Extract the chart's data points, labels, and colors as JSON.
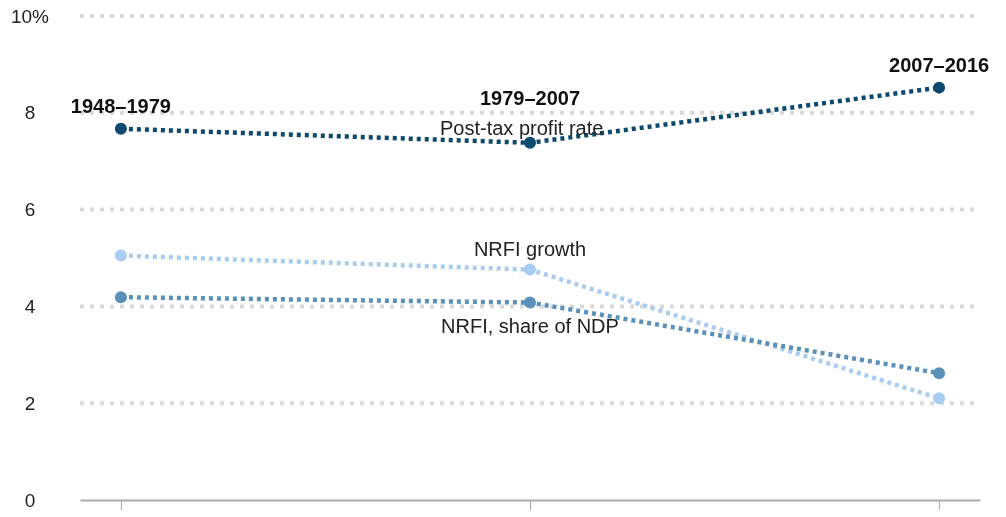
{
  "chart_data": {
    "type": "line",
    "categories": [
      "1948–1979",
      "1979–2007",
      "2007–2016"
    ],
    "series": [
      {
        "name": "Post-tax profit rate",
        "color": "#0b4a6e",
        "values": [
          7.67,
          7.38,
          8.52
        ]
      },
      {
        "name": "NRFI growth",
        "color": "#a8cdf0",
        "values": [
          5.05,
          4.76,
          2.1
        ]
      },
      {
        "name": "NRFI, share of NDP",
        "color": "#5b91b8",
        "values": [
          4.19,
          4.08,
          2.62
        ]
      }
    ],
    "ylim": [
      0,
      10
    ],
    "yticks": [
      0,
      2,
      4,
      6,
      {
        "value": 10,
        "label": "10%"
      },
      8
    ],
    "grid": "y",
    "marker": "circle",
    "line_style": "dotted"
  }
}
